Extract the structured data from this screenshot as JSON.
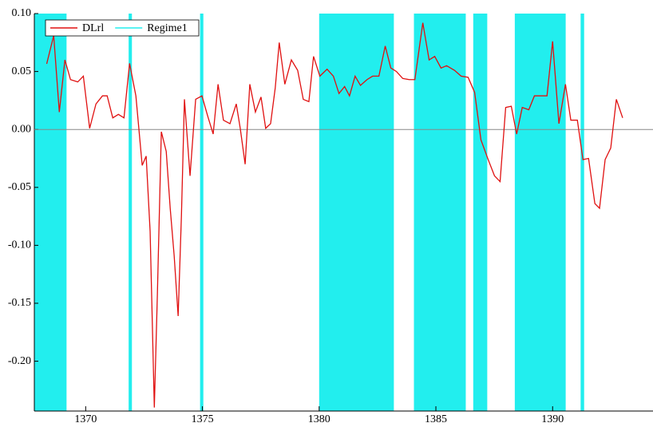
{
  "chart_data": {
    "type": "line",
    "x": [
      1368.33,
      1368.63,
      1368.87,
      1369.11,
      1369.35,
      1369.66,
      1369.9,
      1370.17,
      1370.44,
      1370.72,
      1370.92,
      1371.16,
      1371.4,
      1371.64,
      1371.88,
      1372.15,
      1372.42,
      1372.59,
      1372.76,
      1372.94,
      1373.07,
      1373.24,
      1373.45,
      1373.62,
      1373.79,
      1373.96,
      1374.1,
      1374.23,
      1374.47,
      1374.71,
      1374.98,
      1375.22,
      1375.46,
      1375.67,
      1375.9,
      1376.18,
      1376.45,
      1376.62,
      1376.83,
      1377.03,
      1377.27,
      1377.51,
      1377.71,
      1377.92,
      1378.12,
      1378.29,
      1378.53,
      1378.81,
      1379.08,
      1379.32,
      1379.56,
      1379.76,
      1380.03,
      1380.34,
      1380.61,
      1380.85,
      1381.09,
      1381.3,
      1381.54,
      1381.77,
      1382.05,
      1382.29,
      1382.56,
      1382.83,
      1383.07,
      1383.31,
      1383.58,
      1383.86,
      1384.1,
      1384.44,
      1384.71,
      1384.95,
      1385.22,
      1385.46,
      1385.8,
      1386.08,
      1386.38,
      1386.66,
      1386.93,
      1387.24,
      1387.51,
      1387.75,
      1387.99,
      1388.23,
      1388.46,
      1388.7,
      1388.98,
      1389.22,
      1389.49,
      1389.76,
      1390.0,
      1390.27,
      1390.55,
      1390.78,
      1391.06,
      1391.3,
      1391.54,
      1391.81,
      1392.01,
      1392.25,
      1392.49,
      1392.73,
      1393.0
    ],
    "series": [
      {
        "name": "DLrl",
        "color": "#e01010",
        "values": [
          0.0566,
          0.081,
          0.015,
          0.06,
          0.043,
          0.041,
          0.046,
          0.001,
          0.022,
          0.029,
          0.029,
          0.01,
          0.013,
          0.01,
          0.057,
          0.029,
          -0.031,
          -0.023,
          -0.088,
          -0.24,
          -0.143,
          -0.002,
          -0.019,
          -0.068,
          -0.109,
          -0.161,
          -0.075,
          0.026,
          -0.04,
          0.026,
          0.029,
          0.012,
          -0.004,
          0.039,
          0.008,
          0.005,
          0.022,
          0.001,
          -0.03,
          0.039,
          0.015,
          0.028,
          0.001,
          0.005,
          0.036,
          0.075,
          0.039,
          0.06,
          0.051,
          0.026,
          0.024,
          0.063,
          0.046,
          0.052,
          0.046,
          0.031,
          0.037,
          0.029,
          0.046,
          0.038,
          0.043,
          0.046,
          0.046,
          0.072,
          0.053,
          0.05,
          0.044,
          0.043,
          0.043,
          0.092,
          0.06,
          0.063,
          0.053,
          0.055,
          0.051,
          0.046,
          0.045,
          0.032,
          -0.009,
          -0.026,
          -0.04,
          -0.045,
          0.019,
          0.02,
          -0.004,
          0.019,
          0.017,
          0.029,
          0.029,
          0.029,
          0.076,
          0.005,
          0.039,
          0.008,
          0.008,
          -0.026,
          -0.025,
          -0.064,
          -0.068,
          -0.026,
          -0.016,
          0.026,
          0.01
        ]
      },
      {
        "name": "Regime1",
        "color": "#22eeee",
        "spans": [
          [
            1367.8,
            1369.18
          ],
          [
            1371.84,
            1371.98
          ],
          [
            1374.9,
            1375.04
          ],
          [
            1380.0,
            1383.2
          ],
          [
            1384.06,
            1386.28
          ],
          [
            1386.6,
            1387.2
          ],
          [
            1388.38,
            1390.56
          ],
          [
            1391.2,
            1391.35
          ]
        ]
      }
    ],
    "xlim": [
      1367.8,
      1394.3
    ],
    "ylim": [
      -0.243,
      0.1
    ],
    "xticks": [
      1370,
      1375,
      1380,
      1385,
      1390
    ],
    "yticks": [
      {
        "value": 0.1,
        "label": "0.10"
      },
      {
        "value": 0.05,
        "label": "0.05"
      },
      {
        "value": 0,
        "label": "0.00"
      },
      {
        "value": -0.05,
        "label": "-0.05"
      },
      {
        "value": -0.1,
        "label": "-0.10"
      },
      {
        "value": -0.15,
        "label": "-0.15"
      },
      {
        "value": -0.2,
        "label": "-0.20"
      }
    ],
    "legend": "top-left"
  }
}
